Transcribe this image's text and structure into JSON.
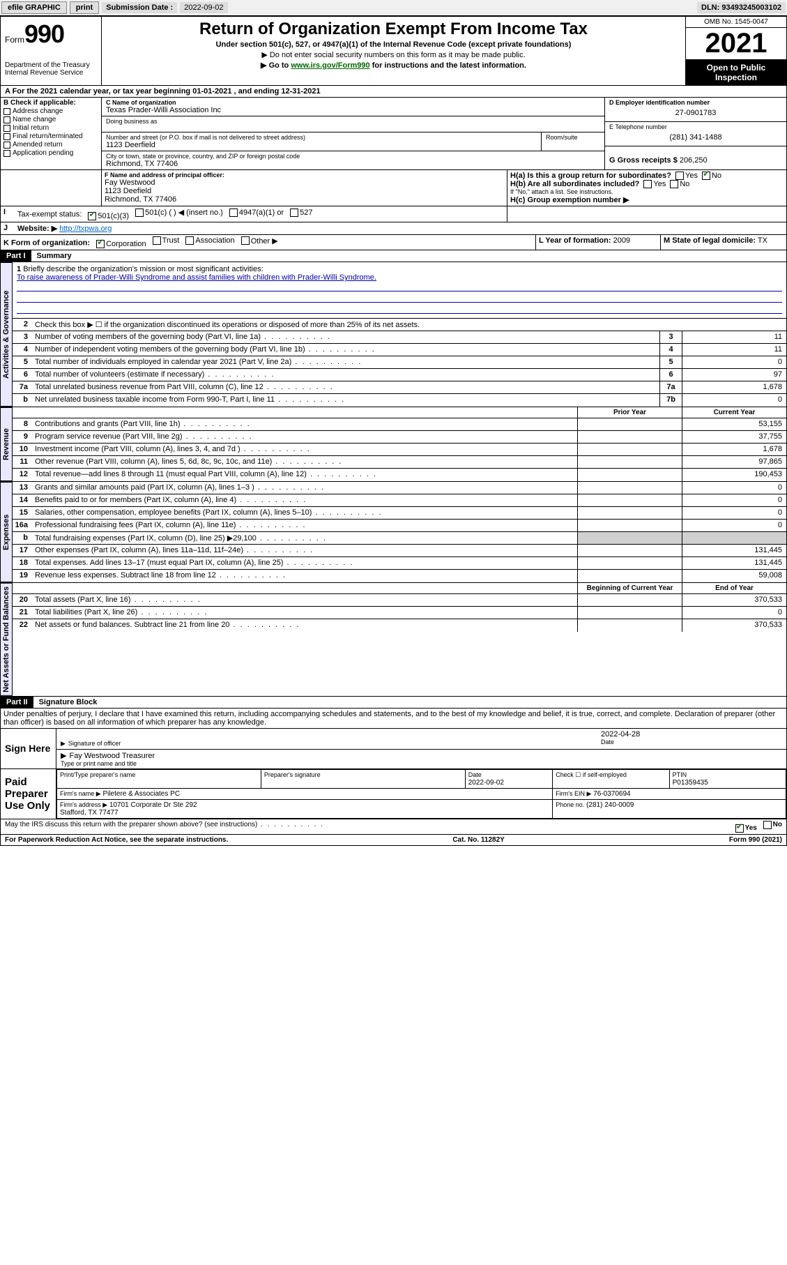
{
  "topbar": {
    "efile": "efile GRAPHIC",
    "print": "print",
    "sub_label": "Submission Date : ",
    "sub_date": "2022-09-02",
    "dln": "DLN: 93493245003102"
  },
  "header": {
    "form_prefix": "Form",
    "form_num": "990",
    "dept": "Department of the Treasury",
    "irs": "Internal Revenue Service",
    "title": "Return of Organization Exempt From Income Tax",
    "subtitle": "Under section 501(c), 527, or 4947(a)(1) of the Internal Revenue Code (except private foundations)",
    "note1": "▶ Do not enter social security numbers on this form as it may be made public.",
    "note2_pre": "▶ Go to ",
    "note2_link": "www.irs.gov/Form990",
    "note2_post": " for instructions and the latest information.",
    "omb": "OMB No. 1545-0047",
    "year": "2021",
    "open": "Open to Public Inspection"
  },
  "period": {
    "text_pre": "A For the 2021 calendar year, or tax year beginning ",
    "begin": "01-01-2021",
    "mid": " , and ending ",
    "end": "12-31-2021"
  },
  "sectionB": {
    "label": "B Check if applicable:",
    "items": [
      "Address change",
      "Name change",
      "Initial return",
      "Final return/terminated",
      "Amended return",
      "Application pending"
    ]
  },
  "sectionC": {
    "name_label": "C Name of organization",
    "name": "Texas Prader-Willi Association Inc",
    "dba_label": "Doing business as",
    "dba": "",
    "street_label": "Number and street (or P.O. box if mail is not delivered to street address)",
    "room_label": "Room/suite",
    "street": "1123 Deerfield",
    "city_label": "City or town, state or province, country, and ZIP or foreign postal code",
    "city": "Richmond, TX  77406"
  },
  "sectionD": {
    "ein_label": "D Employer identification number",
    "ein": "27-0901783",
    "tel_label": "E Telephone number",
    "tel": "(281) 341-1488",
    "gross_label": "G Gross receipts $",
    "gross": "206,250"
  },
  "sectionF": {
    "label": "F Name and address of principal officer:",
    "name": "Fay Westwood",
    "addr1": "1123 Deefield",
    "addr2": "Richmond, TX  77406"
  },
  "sectionH": {
    "a": "H(a)  Is this a group return for subordinates?",
    "b": "H(b)  Are all subordinates included?",
    "b_note": "If \"No,\" attach a list. See instructions.",
    "c": "H(c)  Group exemption number ▶",
    "yes": "Yes",
    "no": "No"
  },
  "sectionI": {
    "label": "Tax-exempt status:",
    "opts": [
      "501(c)(3)",
      "501(c) (  ) ◀ (insert no.)",
      "4947(a)(1) or",
      "527"
    ]
  },
  "sectionJ": {
    "label": "Website: ▶",
    "url": "http://txpwa.org"
  },
  "sectionK": {
    "label": "K Form of organization:",
    "opts": [
      "Corporation",
      "Trust",
      "Association",
      "Other ▶"
    ]
  },
  "sectionL": {
    "label": "L Year of formation:",
    "val": "2009"
  },
  "sectionM": {
    "label": "M State of legal domicile:",
    "val": "TX"
  },
  "part1": {
    "hdr": "Part I",
    "title": "Summary",
    "q1": "Briefly describe the organization's mission or most significant activities:",
    "mission": "To raise awareness of Prader-Willi Syndrome and assist families with children with Prader-Willi Syndrome.",
    "q2": "Check this box ▶ ☐  if the organization discontinued its operations or disposed of more than 25% of its net assets.",
    "rows_gov": [
      {
        "n": "3",
        "t": "Number of voting members of the governing body (Part VI, line 1a)",
        "box": "3",
        "v": "11"
      },
      {
        "n": "4",
        "t": "Number of independent voting members of the governing body (Part VI, line 1b)",
        "box": "4",
        "v": "11"
      },
      {
        "n": "5",
        "t": "Total number of individuals employed in calendar year 2021 (Part V, line 2a)",
        "box": "5",
        "v": "0"
      },
      {
        "n": "6",
        "t": "Total number of volunteers (estimate if necessary)",
        "box": "6",
        "v": "97"
      },
      {
        "n": "7a",
        "t": "Total unrelated business revenue from Part VIII, column (C), line 12",
        "box": "7a",
        "v": "1,678"
      },
      {
        "n": "b",
        "t": "Net unrelated business taxable income from Form 990-T, Part I, line 11",
        "box": "7b",
        "v": "0"
      }
    ],
    "col_prior": "Prior Year",
    "col_curr": "Current Year",
    "rows_rev": [
      {
        "n": "8",
        "t": "Contributions and grants (Part VIII, line 1h)",
        "p": "",
        "c": "53,155"
      },
      {
        "n": "9",
        "t": "Program service revenue (Part VIII, line 2g)",
        "p": "",
        "c": "37,755"
      },
      {
        "n": "10",
        "t": "Investment income (Part VIII, column (A), lines 3, 4, and 7d )",
        "p": "",
        "c": "1,678"
      },
      {
        "n": "11",
        "t": "Other revenue (Part VIII, column (A), lines 5, 6d, 8c, 9c, 10c, and 11e)",
        "p": "",
        "c": "97,865"
      },
      {
        "n": "12",
        "t": "Total revenue—add lines 8 through 11 (must equal Part VIII, column (A), line 12)",
        "p": "",
        "c": "190,453"
      }
    ],
    "rows_exp": [
      {
        "n": "13",
        "t": "Grants and similar amounts paid (Part IX, column (A), lines 1–3 )",
        "p": "",
        "c": "0"
      },
      {
        "n": "14",
        "t": "Benefits paid to or for members (Part IX, column (A), line 4)",
        "p": "",
        "c": "0"
      },
      {
        "n": "15",
        "t": "Salaries, other compensation, employee benefits (Part IX, column (A), lines 5–10)",
        "p": "",
        "c": "0"
      },
      {
        "n": "16a",
        "t": "Professional fundraising fees (Part IX, column (A), line 11e)",
        "p": "",
        "c": "0"
      },
      {
        "n": "b",
        "t": "Total fundraising expenses (Part IX, column (D), line 25) ▶29,100",
        "p": "shade",
        "c": "shade"
      },
      {
        "n": "17",
        "t": "Other expenses (Part IX, column (A), lines 11a–11d, 11f–24e)",
        "p": "",
        "c": "131,445"
      },
      {
        "n": "18",
        "t": "Total expenses. Add lines 13–17 (must equal Part IX, column (A), line 25)",
        "p": "",
        "c": "131,445"
      },
      {
        "n": "19",
        "t": "Revenue less expenses. Subtract line 18 from line 12",
        "p": "",
        "c": "59,008"
      }
    ],
    "col_begin": "Beginning of Current Year",
    "col_end": "End of Year",
    "rows_net": [
      {
        "n": "20",
        "t": "Total assets (Part X, line 16)",
        "p": "",
        "c": "370,533"
      },
      {
        "n": "21",
        "t": "Total liabilities (Part X, line 26)",
        "p": "",
        "c": "0"
      },
      {
        "n": "22",
        "t": "Net assets or fund balances. Subtract line 21 from line 20",
        "p": "",
        "c": "370,533"
      }
    ]
  },
  "tabs": {
    "gov": "Activities & Governance",
    "rev": "Revenue",
    "exp": "Expenses",
    "net": "Net Assets or Fund Balances"
  },
  "part2": {
    "hdr": "Part II",
    "title": "Signature Block",
    "decl": "Under penalties of perjury, I declare that I have examined this return, including accompanying schedules and statements, and to the best of my knowledge and belief, it is true, correct, and complete. Declaration of preparer (other than officer) is based on all information of which preparer has any knowledge."
  },
  "sign": {
    "here": "Sign Here",
    "sig_label": "Signature of officer",
    "date_label": "Date",
    "date": "2022-04-28",
    "name": "Fay Westwood Treasurer",
    "name_label": "Type or print name and title"
  },
  "paid": {
    "label": "Paid Preparer Use Only",
    "col_name": "Print/Type preparer's name",
    "col_sig": "Preparer's signature",
    "col_date": "Date",
    "date": "2022-09-02",
    "self": "Check ☐ if self-employed",
    "ptin_label": "PTIN",
    "ptin": "P01359435",
    "firm_name_label": "Firm's name    ▶",
    "firm_name": "Piletere & Associates PC",
    "firm_ein_label": "Firm's EIN ▶",
    "firm_ein": "76-0370694",
    "firm_addr_label": "Firm's address ▶",
    "firm_addr1": "10701 Corporate Dr Ste 292",
    "firm_addr2": "Stafford, TX  77477",
    "phone_label": "Phone no.",
    "phone": "(281) 240-0009"
  },
  "footer": {
    "discuss": "May the IRS discuss this return with the preparer shown above? (see instructions)",
    "yes": "Yes",
    "no": "No",
    "paperwork": "For Paperwork Reduction Act Notice, see the separate instructions.",
    "cat": "Cat. No. 11282Y",
    "form": "Form 990 (2021)"
  },
  "colors": {
    "link_green": "#006600",
    "check_green": "#2a7a2a",
    "rule_blue": "#2020c0",
    "tab_bg": "#e8e8ff"
  }
}
